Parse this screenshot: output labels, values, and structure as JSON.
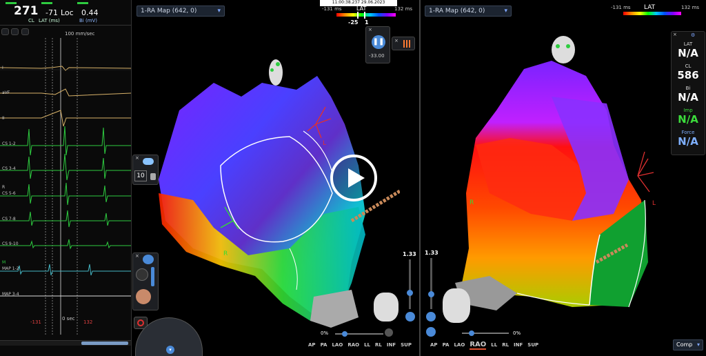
{
  "egm_panel": {
    "cl_value": "271",
    "lat_value": "-71",
    "loc_label": "Loc",
    "bi_value": "0.44",
    "cl_label": "CL",
    "lat_label": "LAT (ms)",
    "bi_label": "Bi (mV)",
    "speed": "100 mm/sec",
    "channels": [
      "I",
      "aVF",
      "II",
      "CS 1-2",
      "CS 3-4",
      "CS 5-6",
      "CS 7-8",
      "CS 9-10",
      "MAP 1-2",
      "MAP 3-4"
    ],
    "window_left": "-131",
    "window_zero": "0 sec",
    "window_right": "132",
    "r_marker": "R",
    "m_marker": "M"
  },
  "timestamp": "11:00:38.237  29.06.2023",
  "left_map": {
    "title": "1-RA Map (642, 0)",
    "lat_label": "LAT",
    "range_min": "-131 ms",
    "range_max": "132 ms",
    "window_left": "-25",
    "window_right": "1",
    "pause_value": "-33.00",
    "ten_value": "10",
    "zoom_value": "1.33",
    "percent": "0%",
    "views": [
      "AP",
      "PA",
      "LAO",
      "RAO",
      "LL",
      "RL",
      "INF",
      "SUP"
    ],
    "label_l": "L",
    "label_r": "R"
  },
  "right_map": {
    "title": "1-RA Map (642, 0)",
    "lat_label": "LAT",
    "range_min": "-131 ms",
    "range_max": "132 ms",
    "zoom_value": "1.33",
    "percent": "0%",
    "views": [
      "AP",
      "PA",
      "LAO",
      "RAO",
      "LL",
      "RL",
      "INF",
      "SUP"
    ],
    "active_view": "RAO",
    "label_l": "L",
    "label_r": "R",
    "comp_label": "Comp"
  },
  "side_panel": {
    "lat_label": "LAT",
    "lat_value": "N/A",
    "cl_label": "CL",
    "cl_value": "586",
    "bi_label": "Bi",
    "bi_value": "N/A",
    "imp_label": "Imp",
    "imp_value": "N/A",
    "force_label": "Force",
    "force_value": "N/A"
  },
  "colors": {
    "accent_green": "#2ecc40",
    "imp_green": "#3cdc3c",
    "force_blue": "#7fb0ff",
    "lat_red": "#e03030"
  }
}
